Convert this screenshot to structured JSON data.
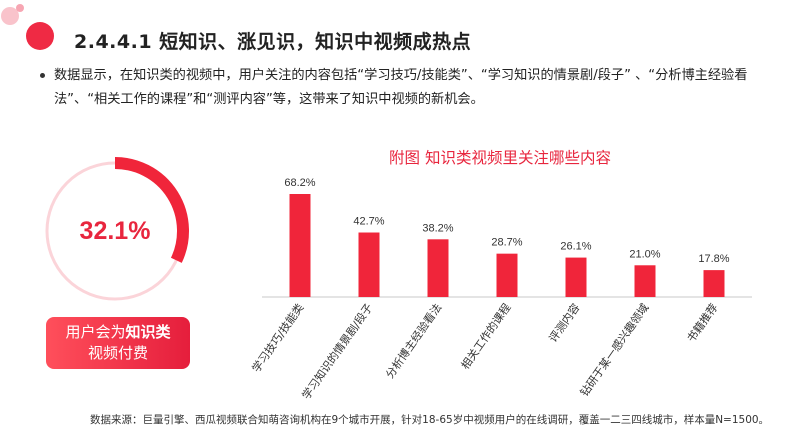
{
  "header": {
    "title": "2.4.4.1  短知识、涨见识，知识中视频成热点"
  },
  "body_text": "数据显示，在知识类的视频中，用户关注的内容包括“学习技巧/技能类”、“学习知识的情景剧/段子”  、“分析博主经验看法”、“相关工作的课程”和“测评内容”等，这带来了知识中视频的新机会。",
  "highlight": {
    "percent_label": "32.1%",
    "percent_value": 32.1,
    "caption_prefix": "用户会为",
    "caption_bold": "知识类",
    "caption_line2": "视频付费"
  },
  "colors": {
    "accent": "#e8263e",
    "bar": "#f0253a",
    "ring_track": "#fbd4d9"
  },
  "chart_data": {
    "type": "bar",
    "title": "附图 知识类视频里关注哪些内容",
    "categories": [
      "学习技巧/技能类",
      "学习知识的情景剧/段子",
      "分析博主经验看法",
      "相关工作的课程",
      "评测内容",
      "钻研于某一感兴趣领域",
      "书籍推荐"
    ],
    "values": [
      68.2,
      42.7,
      38.2,
      28.7,
      26.1,
      21.0,
      17.8
    ],
    "value_labels": [
      "68.2%",
      "42.7%",
      "38.2%",
      "28.7%",
      "26.1%",
      "21.0%",
      "17.8%"
    ],
    "ylim": [
      0,
      100
    ],
    "grid": false
  },
  "footer": {
    "source": "数据来源：巨量引擎、西瓜视频联合知萌咨询机构在9个城市开展，针对18-65岁中视频用户的在线调研，覆盖一二三四线城市，样本量N=1500。"
  }
}
